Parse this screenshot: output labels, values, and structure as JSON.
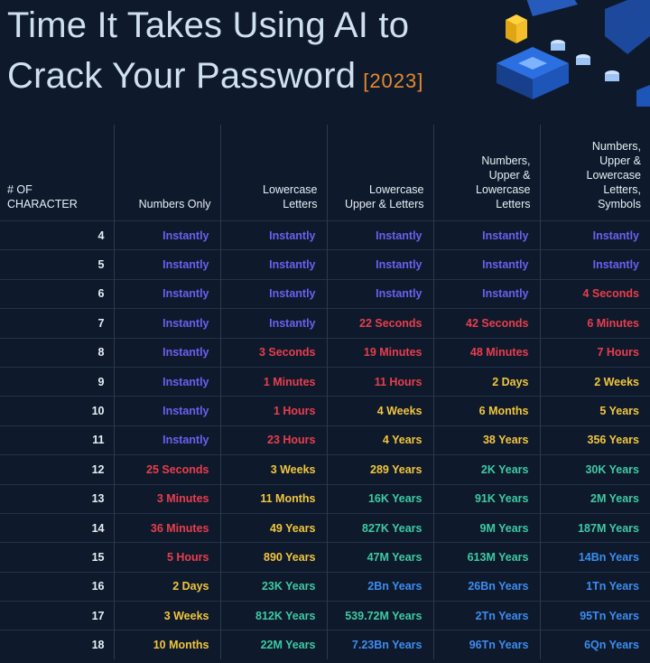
{
  "title": {
    "line1": "Time It Takes Using AI to",
    "line2": "Crack Your Password",
    "year": "[2023]"
  },
  "colors": {
    "background": "#0e1a2b",
    "title": "#cfe0ee",
    "year": "#e58a2e",
    "purple": "#6c5ff0",
    "red": "#ea3d4d",
    "yellow": "#f2c53d",
    "green": "#3ec9a4",
    "blue": "#3d8cf0"
  },
  "chart_data": {
    "type": "table",
    "columns": [
      "# OF\nCHARACTER",
      "Numbers Only",
      "Lowercase\nLetters",
      "Lowercase\nUpper & Letters",
      "Numbers,\nUpper &\nLowercase\nLetters",
      "Numbers,\nUpper &\nLowercase\nLetters,\nSymbols"
    ],
    "rows": [
      {
        "chars": "4",
        "cells": [
          {
            "text": "Instantly",
            "color": "purple"
          },
          {
            "text": "Instantly",
            "color": "purple"
          },
          {
            "text": "Instantly",
            "color": "purple"
          },
          {
            "text": "Instantly",
            "color": "purple"
          },
          {
            "text": "Instantly",
            "color": "purple"
          }
        ]
      },
      {
        "chars": "5",
        "cells": [
          {
            "text": "Instantly",
            "color": "purple"
          },
          {
            "text": "Instantly",
            "color": "purple"
          },
          {
            "text": "Instantly",
            "color": "purple"
          },
          {
            "text": "Instantly",
            "color": "purple"
          },
          {
            "text": "Instantly",
            "color": "purple"
          }
        ]
      },
      {
        "chars": "6",
        "cells": [
          {
            "text": "Instantly",
            "color": "purple"
          },
          {
            "text": "Instantly",
            "color": "purple"
          },
          {
            "text": "Instantly",
            "color": "purple"
          },
          {
            "text": "Instantly",
            "color": "purple"
          },
          {
            "text": "4 Seconds",
            "color": "red"
          }
        ]
      },
      {
        "chars": "7",
        "cells": [
          {
            "text": "Instantly",
            "color": "purple"
          },
          {
            "text": "Instantly",
            "color": "purple"
          },
          {
            "text": "22 Seconds",
            "color": "red"
          },
          {
            "text": "42 Seconds",
            "color": "red"
          },
          {
            "text": "6 Minutes",
            "color": "red"
          }
        ]
      },
      {
        "chars": "8",
        "cells": [
          {
            "text": "Instantly",
            "color": "purple"
          },
          {
            "text": "3 Seconds",
            "color": "red"
          },
          {
            "text": "19 Minutes",
            "color": "red"
          },
          {
            "text": "48 Minutes",
            "color": "red"
          },
          {
            "text": "7 Hours",
            "color": "red"
          }
        ]
      },
      {
        "chars": "9",
        "cells": [
          {
            "text": "Instantly",
            "color": "purple"
          },
          {
            "text": "1 Minutes",
            "color": "red"
          },
          {
            "text": "11 Hours",
            "color": "red"
          },
          {
            "text": "2 Days",
            "color": "yellow"
          },
          {
            "text": "2 Weeks",
            "color": "yellow"
          }
        ]
      },
      {
        "chars": "10",
        "cells": [
          {
            "text": "Instantly",
            "color": "purple"
          },
          {
            "text": "1 Hours",
            "color": "red"
          },
          {
            "text": "4 Weeks",
            "color": "yellow"
          },
          {
            "text": "6 Months",
            "color": "yellow"
          },
          {
            "text": "5 Years",
            "color": "yellow"
          }
        ]
      },
      {
        "chars": "11",
        "cells": [
          {
            "text": "Instantly",
            "color": "purple"
          },
          {
            "text": "23 Hours",
            "color": "red"
          },
          {
            "text": "4 Years",
            "color": "yellow"
          },
          {
            "text": "38 Years",
            "color": "yellow"
          },
          {
            "text": "356 Years",
            "color": "yellow"
          }
        ]
      },
      {
        "chars": "12",
        "cells": [
          {
            "text": "25 Seconds",
            "color": "red"
          },
          {
            "text": "3 Weeks",
            "color": "yellow"
          },
          {
            "text": "289 Years",
            "color": "yellow"
          },
          {
            "text": "2K Years",
            "color": "green"
          },
          {
            "text": "30K Years",
            "color": "green"
          }
        ]
      },
      {
        "chars": "13",
        "cells": [
          {
            "text": "3 Minutes",
            "color": "red"
          },
          {
            "text": "11 Months",
            "color": "yellow"
          },
          {
            "text": "16K Years",
            "color": "green"
          },
          {
            "text": "91K Years",
            "color": "green"
          },
          {
            "text": "2M Years",
            "color": "green"
          }
        ]
      },
      {
        "chars": "14",
        "cells": [
          {
            "text": "36 Minutes",
            "color": "red"
          },
          {
            "text": "49 Years",
            "color": "yellow"
          },
          {
            "text": "827K Years",
            "color": "green"
          },
          {
            "text": "9M Years",
            "color": "green"
          },
          {
            "text": "187M Years",
            "color": "green"
          }
        ]
      },
      {
        "chars": "15",
        "cells": [
          {
            "text": "5 Hours",
            "color": "red"
          },
          {
            "text": "890 Years",
            "color": "yellow"
          },
          {
            "text": "47M Years",
            "color": "green"
          },
          {
            "text": "613M Years",
            "color": "green"
          },
          {
            "text": "14Bn Years",
            "color": "blue"
          }
        ]
      },
      {
        "chars": "16",
        "cells": [
          {
            "text": "2 Days",
            "color": "yellow"
          },
          {
            "text": "23K Years",
            "color": "green"
          },
          {
            "text": "2Bn Years",
            "color": "blue"
          },
          {
            "text": "26Bn Years",
            "color": "blue"
          },
          {
            "text": "1Tn Years",
            "color": "blue"
          }
        ]
      },
      {
        "chars": "17",
        "cells": [
          {
            "text": "3 Weeks",
            "color": "yellow"
          },
          {
            "text": "812K Years",
            "color": "green"
          },
          {
            "text": "539.72M Years",
            "color": "green"
          },
          {
            "text": "2Tn Years",
            "color": "blue"
          },
          {
            "text": "95Tn Years",
            "color": "blue"
          }
        ]
      },
      {
        "chars": "18",
        "cells": [
          {
            "text": "10 Months",
            "color": "yellow"
          },
          {
            "text": "22M Years",
            "color": "green"
          },
          {
            "text": "7.23Bn Years",
            "color": "blue"
          },
          {
            "text": "96Tn Years",
            "color": "blue"
          },
          {
            "text": "6Qn Years",
            "color": "blue"
          }
        ]
      }
    ]
  }
}
